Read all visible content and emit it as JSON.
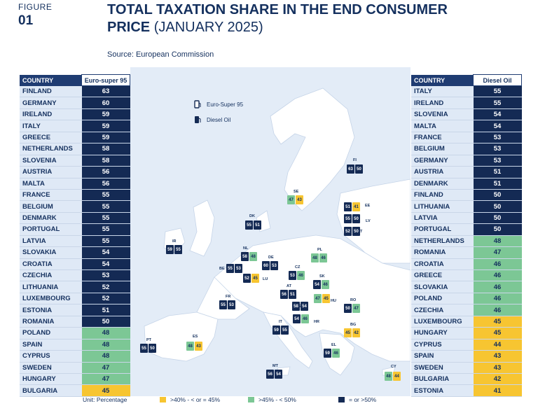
{
  "figure_label": "FIGURE",
  "figure_number": "01",
  "title_line1": "TOTAL TAXATION SHARE IN THE END CONSUMER",
  "title_line2_bold": "PRICE",
  "title_line2_rest": "(JANUARY 2025)",
  "source": "Source: European Commission",
  "legend_top": {
    "euro_super": "Euro-Super 95",
    "diesel": "Diesel Oil"
  },
  "unit": "Unit: Percentage",
  "legend_bottom": [
    {
      "label": ">40% - < or = 45%",
      "color": "#f7c531"
    },
    {
      "label": ">45% - < 50%",
      "color": "#7cc795"
    },
    {
      "label": "= or >50%",
      "color": "#142a54"
    }
  ],
  "colors": {
    "dark": "#142a54",
    "green": "#7cc795",
    "yellow": "#f7c531",
    "sea": "#e3ecf7",
    "land": "#ffffff"
  },
  "left_table": {
    "header_country": "COUNTRY",
    "header_value": "Euro-super 95",
    "rows": [
      {
        "country": "FINLAND",
        "value": "63",
        "cls": "dark"
      },
      {
        "country": "GERMANY",
        "value": "60",
        "cls": "dark"
      },
      {
        "country": "IRELAND",
        "value": "59",
        "cls": "dark"
      },
      {
        "country": "ITALY",
        "value": "59",
        "cls": "dark"
      },
      {
        "country": "GREECE",
        "value": "59",
        "cls": "dark"
      },
      {
        "country": "NETHERLANDS",
        "value": "58",
        "cls": "dark"
      },
      {
        "country": "SLOVENIA",
        "value": "58",
        "cls": "dark"
      },
      {
        "country": "AUSTRIA",
        "value": "56",
        "cls": "dark"
      },
      {
        "country": "MALTA",
        "value": "56",
        "cls": "dark"
      },
      {
        "country": "FRANCE",
        "value": "55",
        "cls": "dark"
      },
      {
        "country": "BELGIUM",
        "value": "55",
        "cls": "dark"
      },
      {
        "country": "DENMARK",
        "value": "55",
        "cls": "dark"
      },
      {
        "country": "PORTUGAL",
        "value": "55",
        "cls": "dark"
      },
      {
        "country": "LATVIA",
        "value": "55",
        "cls": "dark"
      },
      {
        "country": "SLOVAKIA",
        "value": "54",
        "cls": "dark"
      },
      {
        "country": "CROATIA",
        "value": "54",
        "cls": "dark"
      },
      {
        "country": "CZECHIA",
        "value": "53",
        "cls": "dark"
      },
      {
        "country": "LITHUANIA",
        "value": "52",
        "cls": "dark"
      },
      {
        "country": "LUXEMBOURG",
        "value": "52",
        "cls": "dark"
      },
      {
        "country": "ESTONIA",
        "value": "51",
        "cls": "dark"
      },
      {
        "country": "ROMANIA",
        "value": "50",
        "cls": "dark"
      },
      {
        "country": "POLAND",
        "value": "48",
        "cls": "green"
      },
      {
        "country": "SPAIN",
        "value": "48",
        "cls": "green"
      },
      {
        "country": "CYPRUS",
        "value": "48",
        "cls": "green"
      },
      {
        "country": "SWEDEN",
        "value": "47",
        "cls": "green"
      },
      {
        "country": "HUNGARY",
        "value": "47",
        "cls": "green"
      },
      {
        "country": "BULGARIA",
        "value": "45",
        "cls": "yellow"
      }
    ]
  },
  "right_table": {
    "header_country": "COUNTRY",
    "header_value": "Diesel Oil",
    "rows": [
      {
        "country": "ITALY",
        "value": "55",
        "cls": "dark"
      },
      {
        "country": "IRELAND",
        "value": "55",
        "cls": "dark"
      },
      {
        "country": "SLOVENIA",
        "value": "54",
        "cls": "dark"
      },
      {
        "country": "MALTA",
        "value": "54",
        "cls": "dark"
      },
      {
        "country": "FRANCE",
        "value": "53",
        "cls": "dark"
      },
      {
        "country": "BELGIUM",
        "value": "53",
        "cls": "dark"
      },
      {
        "country": "GERMANY",
        "value": "53",
        "cls": "dark"
      },
      {
        "country": "AUSTRIA",
        "value": "51",
        "cls": "dark"
      },
      {
        "country": "DENMARK",
        "value": "51",
        "cls": "dark"
      },
      {
        "country": "FINLAND",
        "value": "50",
        "cls": "dark"
      },
      {
        "country": "LITHUANIA",
        "value": "50",
        "cls": "dark"
      },
      {
        "country": "LATVIA",
        "value": "50",
        "cls": "dark"
      },
      {
        "country": "PORTUGAL",
        "value": "50",
        "cls": "dark"
      },
      {
        "country": "NETHERLANDS",
        "value": "48",
        "cls": "green"
      },
      {
        "country": "ROMANIA",
        "value": "47",
        "cls": "green"
      },
      {
        "country": "CROATIA",
        "value": "46",
        "cls": "green"
      },
      {
        "country": "GREECE",
        "value": "46",
        "cls": "green"
      },
      {
        "country": "SLOVAKIA",
        "value": "46",
        "cls": "green"
      },
      {
        "country": "POLAND",
        "value": "46",
        "cls": "green"
      },
      {
        "country": "CZECHIA",
        "value": "46",
        "cls": "green"
      },
      {
        "country": "LUXEMBOURG",
        "value": "45",
        "cls": "yellow"
      },
      {
        "country": "HUNGARY",
        "value": "45",
        "cls": "yellow"
      },
      {
        "country": "CYPRUS",
        "value": "44",
        "cls": "yellow"
      },
      {
        "country": "SPAIN",
        "value": "43",
        "cls": "yellow"
      },
      {
        "country": "SWEDEN",
        "value": "43",
        "cls": "yellow"
      },
      {
        "country": "BULGARIA",
        "value": "42",
        "cls": "yellow"
      },
      {
        "country": "ESTONIA",
        "value": "41",
        "cls": "yellow"
      }
    ]
  },
  "map_markers": [
    {
      "code": "FI",
      "petrol": "63",
      "diesel": "50",
      "pc": "dark",
      "dc": "dark"
    },
    {
      "code": "SE",
      "petrol": "47",
      "diesel": "43",
      "pc": "green",
      "dc": "yellow"
    },
    {
      "code": "EE",
      "petrol": "51",
      "diesel": "41",
      "pc": "dark",
      "dc": "yellow"
    },
    {
      "code": "LV",
      "petrol": "55",
      "diesel": "50",
      "pc": "dark",
      "dc": "dark"
    },
    {
      "code": "LT",
      "petrol": "52",
      "diesel": "50",
      "pc": "dark",
      "dc": "dark"
    },
    {
      "code": "DK",
      "petrol": "55",
      "diesel": "51",
      "pc": "dark",
      "dc": "dark"
    },
    {
      "code": "IR",
      "petrol": "59",
      "diesel": "55",
      "pc": "dark",
      "dc": "dark"
    },
    {
      "code": "NL",
      "petrol": "58",
      "diesel": "48",
      "pc": "dark",
      "dc": "green"
    },
    {
      "code": "DE",
      "petrol": "60",
      "diesel": "53",
      "pc": "dark",
      "dc": "dark"
    },
    {
      "code": "PL",
      "petrol": "48",
      "diesel": "46",
      "pc": "green",
      "dc": "green"
    },
    {
      "code": "BE",
      "petrol": "55",
      "diesel": "53",
      "pc": "dark",
      "dc": "dark"
    },
    {
      "code": "LU",
      "petrol": "52",
      "diesel": "45",
      "pc": "dark",
      "dc": "yellow"
    },
    {
      "code": "CZ",
      "petrol": "53",
      "diesel": "46",
      "pc": "dark",
      "dc": "green"
    },
    {
      "code": "SK",
      "petrol": "54",
      "diesel": "46",
      "pc": "dark",
      "dc": "green"
    },
    {
      "code": "AT",
      "petrol": "56",
      "diesel": "51",
      "pc": "dark",
      "dc": "dark"
    },
    {
      "code": "HU",
      "petrol": "47",
      "diesel": "45",
      "pc": "green",
      "dc": "yellow"
    },
    {
      "code": "FR",
      "petrol": "55",
      "diesel": "53",
      "pc": "dark",
      "dc": "dark"
    },
    {
      "code": "SL",
      "petrol": "58",
      "diesel": "54",
      "pc": "dark",
      "dc": "dark"
    },
    {
      "code": "RO",
      "petrol": "50",
      "diesel": "47",
      "pc": "dark",
      "dc": "green"
    },
    {
      "code": "HR",
      "petrol": "54",
      "diesel": "46",
      "pc": "dark",
      "dc": "green"
    },
    {
      "code": "IT",
      "petrol": "59",
      "diesel": "55",
      "pc": "dark",
      "dc": "dark"
    },
    {
      "code": "BG",
      "petrol": "45",
      "diesel": "42",
      "pc": "yellow",
      "dc": "yellow"
    },
    {
      "code": "PT",
      "petrol": "55",
      "diesel": "50",
      "pc": "dark",
      "dc": "dark"
    },
    {
      "code": "ES",
      "petrol": "48",
      "diesel": "43",
      "pc": "green",
      "dc": "yellow"
    },
    {
      "code": "EL",
      "petrol": "59",
      "diesel": "46",
      "pc": "dark",
      "dc": "green"
    },
    {
      "code": "MT",
      "petrol": "56",
      "diesel": "54",
      "pc": "dark",
      "dc": "dark"
    },
    {
      "code": "CY",
      "petrol": "48",
      "diesel": "44",
      "pc": "green",
      "dc": "yellow"
    }
  ]
}
